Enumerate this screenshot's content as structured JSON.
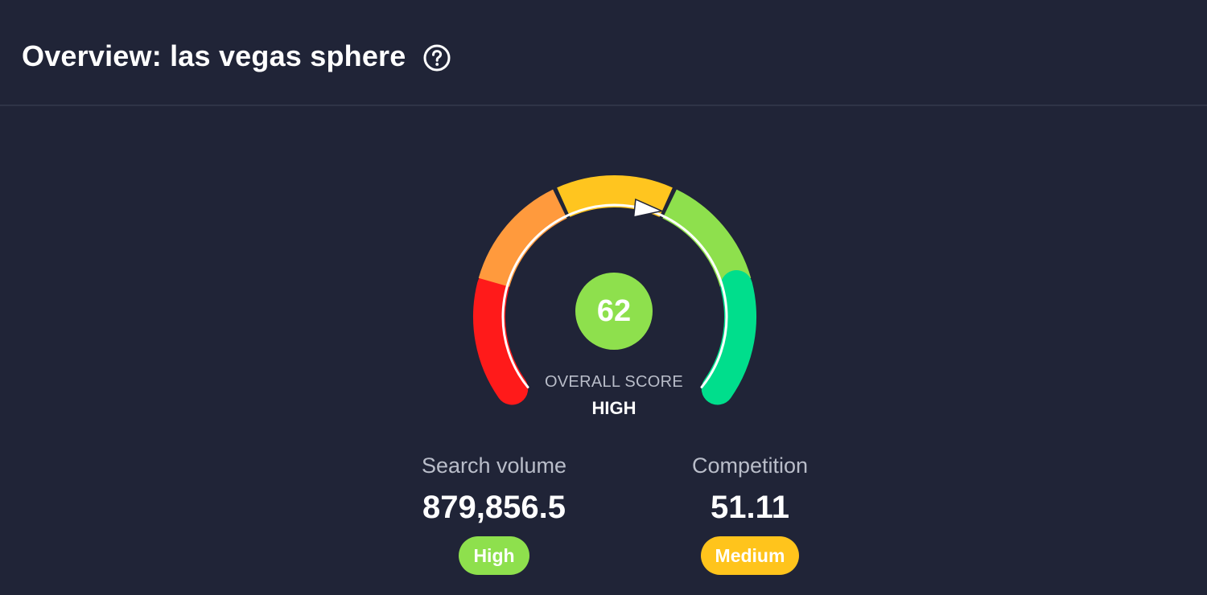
{
  "header": {
    "title": "Overview: las vegas sphere",
    "help_icon": "question-circle-icon"
  },
  "gauge": {
    "score": "62",
    "score_value": 62,
    "score_color": "#8ee04d",
    "label": "OVERALL SCORE",
    "level": "HIGH",
    "segment_colors": [
      "#ff1a1a",
      "#ff9a3d",
      "#ffc51f",
      "#8ee04d",
      "#00de8c"
    ]
  },
  "metrics": {
    "search_volume": {
      "label": "Search volume",
      "value": "879,856.5",
      "badge": "High",
      "badge_color": "#8ee04d"
    },
    "competition": {
      "label": "Competition",
      "value": "51.11",
      "badge": "Medium",
      "badge_color": "#ffc41c"
    }
  },
  "colors": {
    "background": "#202437",
    "divider": "#2f3447",
    "muted_text": "#b9bdc9"
  }
}
